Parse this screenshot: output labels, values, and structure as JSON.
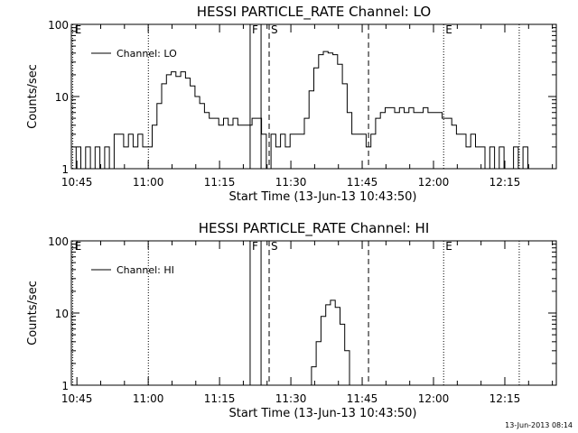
{
  "footer": {
    "timestamp": "13-Jun-2013 08:14"
  },
  "chart_data": [
    {
      "type": "line",
      "title": "HESSI PARTICLE_RATE Channel: LO",
      "xlabel": "Start Time (13-Jun-13 10:43:50)",
      "ylabel": "Counts/sec",
      "y_scale": "log",
      "ylim": [
        1,
        100
      ],
      "y_ticks": [
        1,
        10,
        100
      ],
      "y_tick_labels": [
        "1",
        "10",
        "100"
      ],
      "xlim_minutes": [
        0,
        102
      ],
      "x_ticks": [
        1.17,
        16.17,
        31.17,
        46.17,
        61.17,
        76.17,
        91.17
      ],
      "x_tick_labels": [
        "10:45",
        "11:00",
        "11:15",
        "11:30",
        "11:45",
        "12:00",
        "12:15"
      ],
      "legend": {
        "placement": "top-left",
        "entries": [
          "Channel: LO"
        ]
      },
      "markers": [
        {
          "label": "E",
          "minute": 0.3,
          "style": "dotted"
        },
        {
          "label": "",
          "minute": 16.2,
          "style": "dotted"
        },
        {
          "label": "F",
          "minute": 37.6,
          "style": "solid"
        },
        {
          "label": "",
          "minute": 39.9,
          "style": "solid"
        },
        {
          "label": "S",
          "minute": 41.6,
          "style": "dashed"
        },
        {
          "label": "",
          "minute": 62.5,
          "style": "dashed"
        },
        {
          "label": "E",
          "minute": 78.3,
          "style": "dotted"
        },
        {
          "label": "",
          "minute": 94.2,
          "style": "dotted"
        }
      ],
      "series": [
        {
          "name": "Channel: LO",
          "x": [
            0,
            1,
            2,
            3,
            4,
            5,
            6,
            7,
            8,
            9,
            10,
            11,
            12,
            13,
            14,
            15,
            16,
            17,
            18,
            19,
            20,
            21,
            22,
            23,
            24,
            25,
            26,
            27,
            28,
            29,
            30,
            31,
            32,
            33,
            34,
            35,
            36,
            37,
            38,
            39,
            40,
            41,
            42,
            43,
            44,
            45,
            46,
            47,
            48,
            49,
            50,
            51,
            52,
            53,
            54,
            55,
            56,
            57,
            58,
            59,
            60,
            61,
            62,
            63,
            64,
            65,
            66,
            67,
            68,
            69,
            70,
            71,
            72,
            73,
            74,
            75,
            76,
            77,
            78,
            79,
            80,
            81,
            82,
            83,
            84,
            85,
            86,
            87,
            88,
            89,
            90,
            91,
            92,
            93,
            94,
            95,
            96
          ],
          "y": [
            1,
            2,
            1,
            2,
            1,
            2,
            1,
            2,
            1,
            3,
            3,
            2,
            3,
            2,
            3,
            2,
            2,
            4,
            8,
            15,
            20,
            22,
            19,
            22,
            18,
            14,
            10,
            8,
            6,
            5,
            5,
            4,
            5,
            4,
            5,
            4,
            4,
            4,
            5,
            5,
            3,
            1,
            3,
            2,
            3,
            2,
            3,
            3,
            3,
            5,
            12,
            25,
            38,
            42,
            40,
            38,
            28,
            15,
            6,
            3,
            3,
            3,
            2,
            3,
            5,
            6,
            7,
            7,
            6,
            7,
            6,
            7,
            6,
            6,
            7,
            6,
            6,
            6,
            5,
            5,
            4,
            3,
            3,
            2,
            3,
            2,
            2,
            1,
            2,
            1,
            2,
            1,
            1,
            2,
            1,
            2,
            1
          ]
        }
      ]
    },
    {
      "type": "line",
      "title": "HESSI PARTICLE_RATE Channel: HI",
      "xlabel": "Start Time (13-Jun-13 10:43:50)",
      "ylabel": "Counts/sec",
      "y_scale": "log",
      "ylim": [
        1,
        100
      ],
      "y_ticks": [
        1,
        10,
        100
      ],
      "y_tick_labels": [
        "1",
        "10",
        "100"
      ],
      "xlim_minutes": [
        0,
        102
      ],
      "x_ticks": [
        1.17,
        16.17,
        31.17,
        46.17,
        61.17,
        76.17,
        91.17
      ],
      "x_tick_labels": [
        "10:45",
        "11:00",
        "11:15",
        "11:30",
        "11:45",
        "12:00",
        "12:15"
      ],
      "legend": {
        "placement": "top-left",
        "entries": [
          "Channel: HI"
        ]
      },
      "markers": [
        {
          "label": "E",
          "minute": 0.3,
          "style": "dotted"
        },
        {
          "label": "",
          "minute": 16.2,
          "style": "dotted"
        },
        {
          "label": "F",
          "minute": 37.6,
          "style": "solid"
        },
        {
          "label": "",
          "minute": 39.9,
          "style": "solid"
        },
        {
          "label": "S",
          "minute": 41.6,
          "style": "dashed"
        },
        {
          "label": "",
          "minute": 62.5,
          "style": "dashed"
        },
        {
          "label": "E",
          "minute": 78.3,
          "style": "dotted"
        },
        {
          "label": "",
          "minute": 94.2,
          "style": "dotted"
        }
      ],
      "series": [
        {
          "name": "Channel: HI",
          "x": [
            49.5,
            50.5,
            51.5,
            52.5,
            53.5,
            54.5,
            55.5,
            56.5,
            57.5,
            58.5
          ],
          "y": [
            1,
            1.8,
            4,
            9,
            13,
            15,
            12,
            7,
            3,
            1
          ]
        }
      ]
    }
  ]
}
